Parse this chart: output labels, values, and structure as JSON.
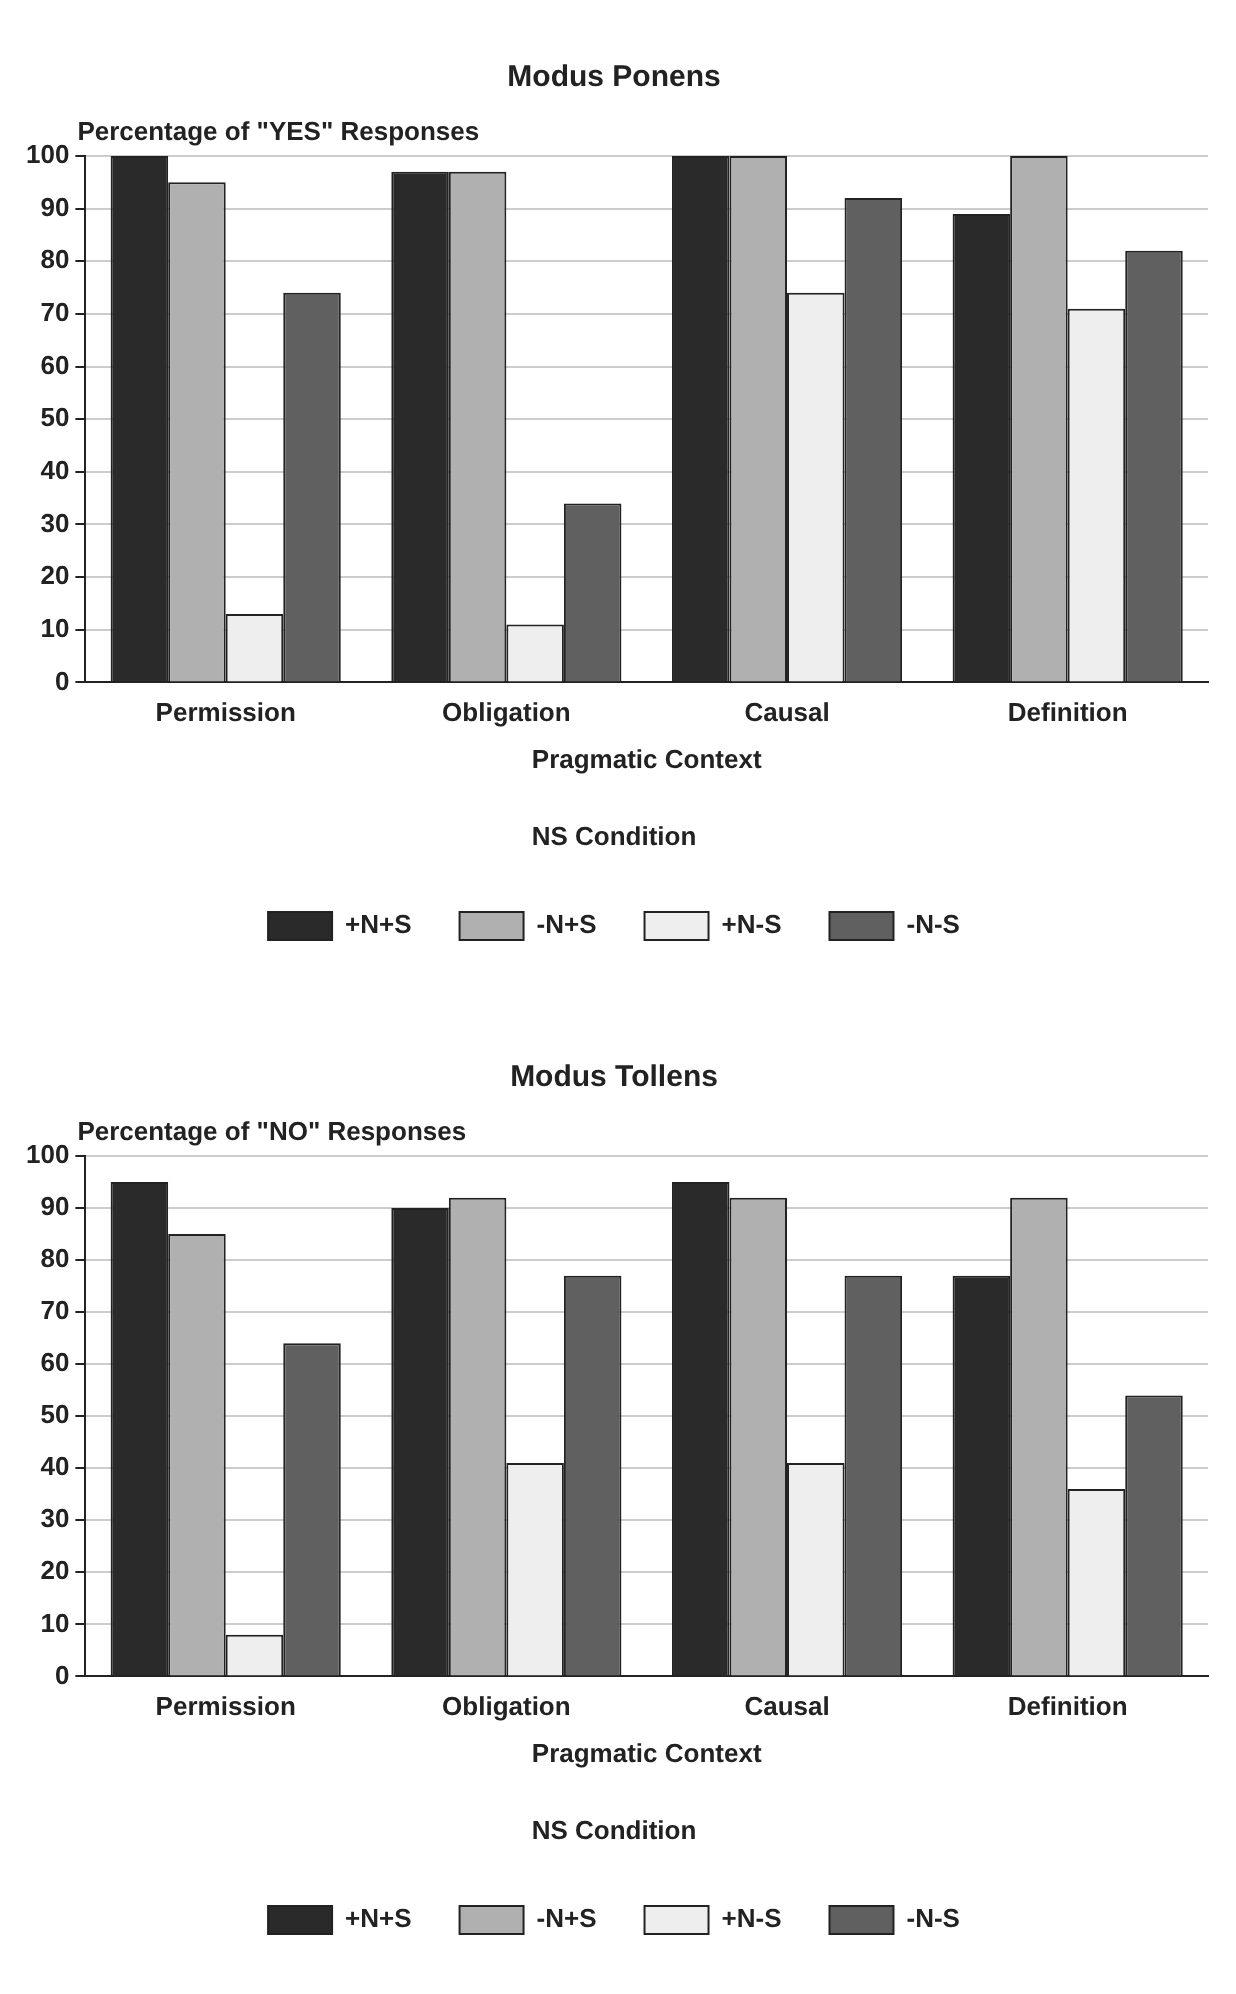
{
  "chart_data": [
    {
      "type": "bar",
      "title": "Modus Ponens",
      "ylabel": "Percentage of \"YES\" Responses",
      "xlabel": "Pragmatic Context",
      "legend_title": "NS Condition",
      "categories": [
        "Permission",
        "Obligation",
        "Causal",
        "Definition"
      ],
      "series": [
        {
          "name": "+N+S",
          "color": "#2a2a2a",
          "values": [
            100,
            97,
            100,
            89
          ]
        },
        {
          "name": "-N+S",
          "color": "#b0b0b0",
          "values": [
            95,
            97,
            100,
            100
          ]
        },
        {
          "name": "+N-S",
          "color": "#eeeeee",
          "values": [
            13,
            11,
            74,
            71
          ]
        },
        {
          "name": "-N-S",
          "color": "#606060",
          "values": [
            74,
            34,
            92,
            82
          ]
        }
      ],
      "ylim": [
        0,
        100
      ],
      "yticks": [
        0,
        10,
        20,
        30,
        40,
        50,
        60,
        70,
        80,
        90,
        100
      ],
      "grid": "y",
      "legend": "bottom"
    },
    {
      "type": "bar",
      "title": "Modus Tollens",
      "ylabel": "Percentage of \"NO\" Responses",
      "xlabel": "Pragmatic Context",
      "legend_title": "NS Condition",
      "categories": [
        "Permission",
        "Obligation",
        "Causal",
        "Definition"
      ],
      "series": [
        {
          "name": "+N+S",
          "color": "#2a2a2a",
          "values": [
            95,
            90,
            95,
            77
          ]
        },
        {
          "name": "-N+S",
          "color": "#b0b0b0",
          "values": [
            85,
            92,
            92,
            92
          ]
        },
        {
          "name": "+N-S",
          "color": "#eeeeee",
          "values": [
            8,
            41,
            41,
            36
          ]
        },
        {
          "name": "-N-S",
          "color": "#606060",
          "values": [
            64,
            77,
            77,
            54
          ]
        }
      ],
      "ylim": [
        0,
        100
      ],
      "yticks": [
        0,
        10,
        20,
        30,
        40,
        50,
        60,
        70,
        80,
        90,
        100
      ],
      "grid": "y",
      "legend": "bottom"
    }
  ]
}
